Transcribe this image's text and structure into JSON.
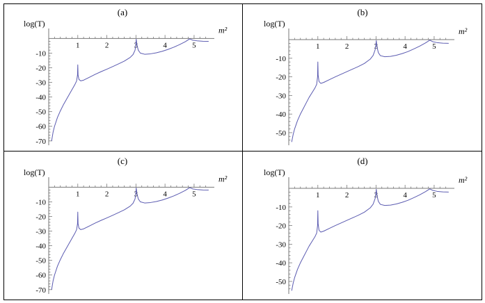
{
  "chart_data": [
    {
      "type": "line",
      "panel_label": "(a)",
      "ylabel": "log(T)",
      "xlabel": "m²",
      "xlim": [
        0,
        5.6
      ],
      "ylim": [
        -72,
        3
      ],
      "xticks": [
        1,
        2,
        3,
        4,
        5
      ],
      "yticks": [
        -10,
        -20,
        -30,
        -40,
        -50,
        -60,
        -70
      ],
      "color": "#5a5ab0",
      "series": [
        {
          "values": [
            [
              0.1,
              -70
            ],
            [
              0.15,
              -64
            ],
            [
              0.2,
              -60
            ],
            [
              0.3,
              -54
            ],
            [
              0.4,
              -49.5
            ],
            [
              0.5,
              -45.5
            ],
            [
              0.6,
              -42
            ],
            [
              0.7,
              -38.5
            ],
            [
              0.8,
              -35
            ],
            [
              0.9,
              -31.5
            ],
            [
              0.96,
              -29
            ],
            [
              0.99,
              -25
            ],
            [
              1.0,
              -18
            ],
            [
              1.01,
              -25
            ],
            [
              1.04,
              -28
            ],
            [
              1.1,
              -29
            ],
            [
              1.2,
              -28.5
            ],
            [
              1.4,
              -26.5
            ],
            [
              1.6,
              -24.5
            ],
            [
              1.8,
              -22.7
            ],
            [
              2.0,
              -21
            ],
            [
              2.2,
              -19.2
            ],
            [
              2.4,
              -17.4
            ],
            [
              2.6,
              -15.5
            ],
            [
              2.8,
              -13
            ],
            [
              2.9,
              -11
            ],
            [
              2.97,
              -8
            ],
            [
              3.0,
              -3
            ],
            [
              3.01,
              -0.5
            ],
            [
              3.03,
              -4
            ],
            [
              3.08,
              -8
            ],
            [
              3.15,
              -10
            ],
            [
              3.3,
              -10.8
            ],
            [
              3.5,
              -10.5
            ],
            [
              3.7,
              -9.8
            ],
            [
              3.9,
              -8.8
            ],
            [
              4.1,
              -7.5
            ],
            [
              4.3,
              -6
            ],
            [
              4.5,
              -4.2
            ],
            [
              4.7,
              -2.2
            ],
            [
              4.85,
              -0.3
            ],
            [
              4.95,
              -1.2
            ],
            [
              5.1,
              -1.6
            ],
            [
              5.3,
              -1.9
            ],
            [
              5.5,
              -2.0
            ]
          ]
        }
      ]
    },
    {
      "type": "line",
      "panel_label": "(b)",
      "ylabel": "log(T)",
      "xlabel": "m²",
      "xlim": [
        0,
        5.6
      ],
      "ylim": [
        -56,
        3
      ],
      "xticks": [
        1,
        2,
        3,
        4,
        5
      ],
      "yticks": [
        -10,
        -20,
        -30,
        -40,
        -50
      ],
      "color": "#5a5ab0",
      "series": [
        {
          "values": [
            [
              0.1,
              -55
            ],
            [
              0.15,
              -51
            ],
            [
              0.2,
              -48
            ],
            [
              0.3,
              -43.5
            ],
            [
              0.4,
              -40
            ],
            [
              0.5,
              -37
            ],
            [
              0.6,
              -34
            ],
            [
              0.7,
              -31
            ],
            [
              0.8,
              -28.5
            ],
            [
              0.9,
              -26
            ],
            [
              0.96,
              -24
            ],
            [
              0.99,
              -20
            ],
            [
              1.0,
              -12
            ],
            [
              1.01,
              -19
            ],
            [
              1.04,
              -22.5
            ],
            [
              1.1,
              -23.5
            ],
            [
              1.2,
              -23
            ],
            [
              1.4,
              -21.5
            ],
            [
              1.6,
              -20
            ],
            [
              1.8,
              -18.6
            ],
            [
              2.0,
              -17.2
            ],
            [
              2.2,
              -15.8
            ],
            [
              2.4,
              -14.4
            ],
            [
              2.6,
              -12.8
            ],
            [
              2.8,
              -10.5
            ],
            [
              2.9,
              -8.5
            ],
            [
              2.97,
              -5.5
            ],
            [
              3.0,
              -2
            ],
            [
              3.01,
              -0.5
            ],
            [
              3.03,
              -3.5
            ],
            [
              3.08,
              -7
            ],
            [
              3.15,
              -8.6
            ],
            [
              3.3,
              -9.2
            ],
            [
              3.5,
              -9
            ],
            [
              3.7,
              -8.4
            ],
            [
              3.9,
              -7.5
            ],
            [
              4.1,
              -6.4
            ],
            [
              4.3,
              -5
            ],
            [
              4.5,
              -3.5
            ],
            [
              4.7,
              -1.8
            ],
            [
              4.85,
              -0.3
            ],
            [
              4.95,
              -1.1
            ],
            [
              5.1,
              -1.6
            ],
            [
              5.3,
              -1.9
            ],
            [
              5.5,
              -2.0
            ]
          ]
        }
      ]
    },
    {
      "type": "line",
      "panel_label": "(c)",
      "ylabel": "log(T)",
      "xlabel": "m²",
      "xlim": [
        0,
        5.6
      ],
      "ylim": [
        -72,
        3
      ],
      "xticks": [
        1,
        2,
        3,
        4,
        5
      ],
      "yticks": [
        -10,
        -20,
        -30,
        -40,
        -50,
        -60,
        -70
      ],
      "color": "#5a5ab0",
      "series": [
        {
          "values": [
            [
              0.1,
              -70
            ],
            [
              0.15,
              -64
            ],
            [
              0.2,
              -60
            ],
            [
              0.3,
              -54
            ],
            [
              0.4,
              -49.5
            ],
            [
              0.5,
              -45.5
            ],
            [
              0.6,
              -42
            ],
            [
              0.7,
              -38.5
            ],
            [
              0.8,
              -35
            ],
            [
              0.9,
              -31.5
            ],
            [
              0.96,
              -29
            ],
            [
              0.99,
              -25
            ],
            [
              1.0,
              -17
            ],
            [
              1.01,
              -25
            ],
            [
              1.04,
              -28
            ],
            [
              1.1,
              -29
            ],
            [
              1.2,
              -28.5
            ],
            [
              1.4,
              -26.5
            ],
            [
              1.6,
              -24.5
            ],
            [
              1.8,
              -22.7
            ],
            [
              2.0,
              -21
            ],
            [
              2.2,
              -19.2
            ],
            [
              2.4,
              -17.4
            ],
            [
              2.6,
              -15.5
            ],
            [
              2.8,
              -13
            ],
            [
              2.9,
              -11
            ],
            [
              2.97,
              -8
            ],
            [
              3.0,
              -3
            ],
            [
              3.01,
              -0.5
            ],
            [
              3.03,
              -4
            ],
            [
              3.08,
              -8
            ],
            [
              3.15,
              -10
            ],
            [
              3.3,
              -10.8
            ],
            [
              3.5,
              -10.5
            ],
            [
              3.7,
              -9.8
            ],
            [
              3.9,
              -8.8
            ],
            [
              4.1,
              -7.5
            ],
            [
              4.3,
              -6
            ],
            [
              4.5,
              -4.2
            ],
            [
              4.7,
              -2.2
            ],
            [
              4.85,
              -0.3
            ],
            [
              4.95,
              -1.2
            ],
            [
              5.1,
              -1.6
            ],
            [
              5.3,
              -1.9
            ],
            [
              5.5,
              -2.0
            ]
          ]
        }
      ]
    },
    {
      "type": "line",
      "panel_label": "(d)",
      "ylabel": "log(T)",
      "xlabel": "m²",
      "xlim": [
        0,
        5.6
      ],
      "ylim": [
        -56,
        3
      ],
      "xticks": [
        1,
        2,
        3,
        4,
        5
      ],
      "yticks": [
        -10,
        -20,
        -30,
        -40,
        -50
      ],
      "color": "#5a5ab0",
      "series": [
        {
          "values": [
            [
              0.1,
              -55
            ],
            [
              0.15,
              -51
            ],
            [
              0.2,
              -48
            ],
            [
              0.3,
              -43.5
            ],
            [
              0.4,
              -40
            ],
            [
              0.5,
              -37
            ],
            [
              0.6,
              -34
            ],
            [
              0.7,
              -31
            ],
            [
              0.8,
              -28.5
            ],
            [
              0.9,
              -26
            ],
            [
              0.96,
              -24
            ],
            [
              0.99,
              -20
            ],
            [
              1.0,
              -12
            ],
            [
              1.01,
              -19
            ],
            [
              1.04,
              -22.5
            ],
            [
              1.1,
              -23.5
            ],
            [
              1.2,
              -23
            ],
            [
              1.4,
              -21.5
            ],
            [
              1.6,
              -20
            ],
            [
              1.8,
              -18.6
            ],
            [
              2.0,
              -17.2
            ],
            [
              2.2,
              -15.8
            ],
            [
              2.4,
              -14.4
            ],
            [
              2.6,
              -12.8
            ],
            [
              2.8,
              -10.5
            ],
            [
              2.9,
              -8.5
            ],
            [
              2.97,
              -5.5
            ],
            [
              3.0,
              -2
            ],
            [
              3.01,
              -0.5
            ],
            [
              3.03,
              -3.5
            ],
            [
              3.08,
              -7
            ],
            [
              3.15,
              -8.6
            ],
            [
              3.3,
              -9.2
            ],
            [
              3.5,
              -9
            ],
            [
              3.7,
              -8.4
            ],
            [
              3.9,
              -7.5
            ],
            [
              4.1,
              -6.4
            ],
            [
              4.3,
              -5
            ],
            [
              4.5,
              -3.5
            ],
            [
              4.7,
              -1.8
            ],
            [
              4.85,
              -0.3
            ],
            [
              4.95,
              -1.1
            ],
            [
              5.1,
              -1.6
            ],
            [
              5.3,
              -1.9
            ],
            [
              5.5,
              -2.0
            ]
          ]
        }
      ]
    }
  ]
}
